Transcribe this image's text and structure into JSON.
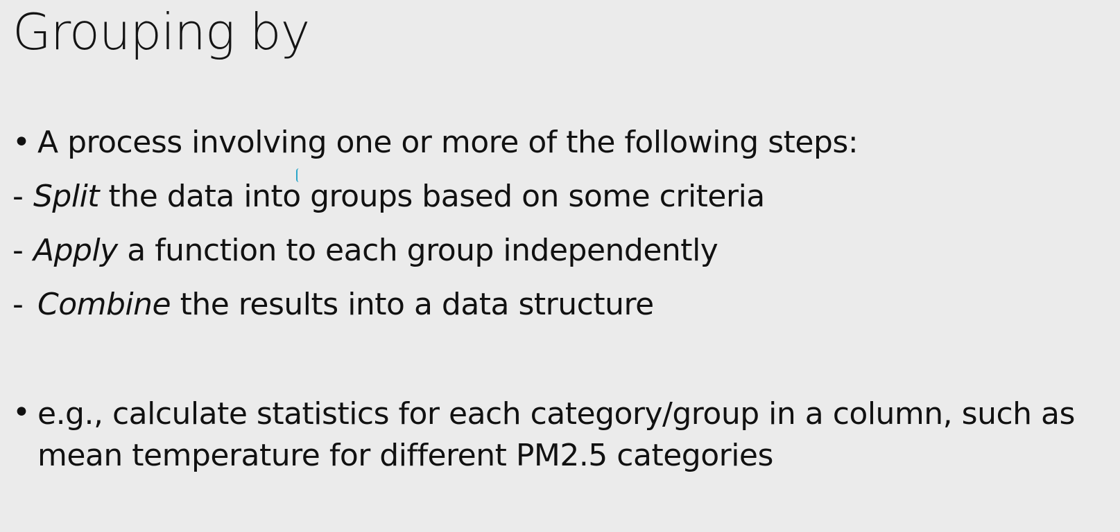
{
  "slide": {
    "title": "Grouping by",
    "bullet_1": {
      "marker": "•",
      "text": "A process involving one or more of the following steps:"
    },
    "steps": [
      {
        "dash": "-",
        "keyword": "Split",
        "rest": " the data into groups based on some criteria"
      },
      {
        "dash": "-",
        "keyword": "Apply",
        "rest": " a function to each group independently"
      },
      {
        "dash": "-",
        "keyword": "Combine",
        "rest": " the results into a data structure"
      }
    ],
    "bullet_2": {
      "marker": "•",
      "text": "e.g., calculate statistics for each category/group in a column, such as mean temperature for different PM2.5 categories"
    }
  }
}
